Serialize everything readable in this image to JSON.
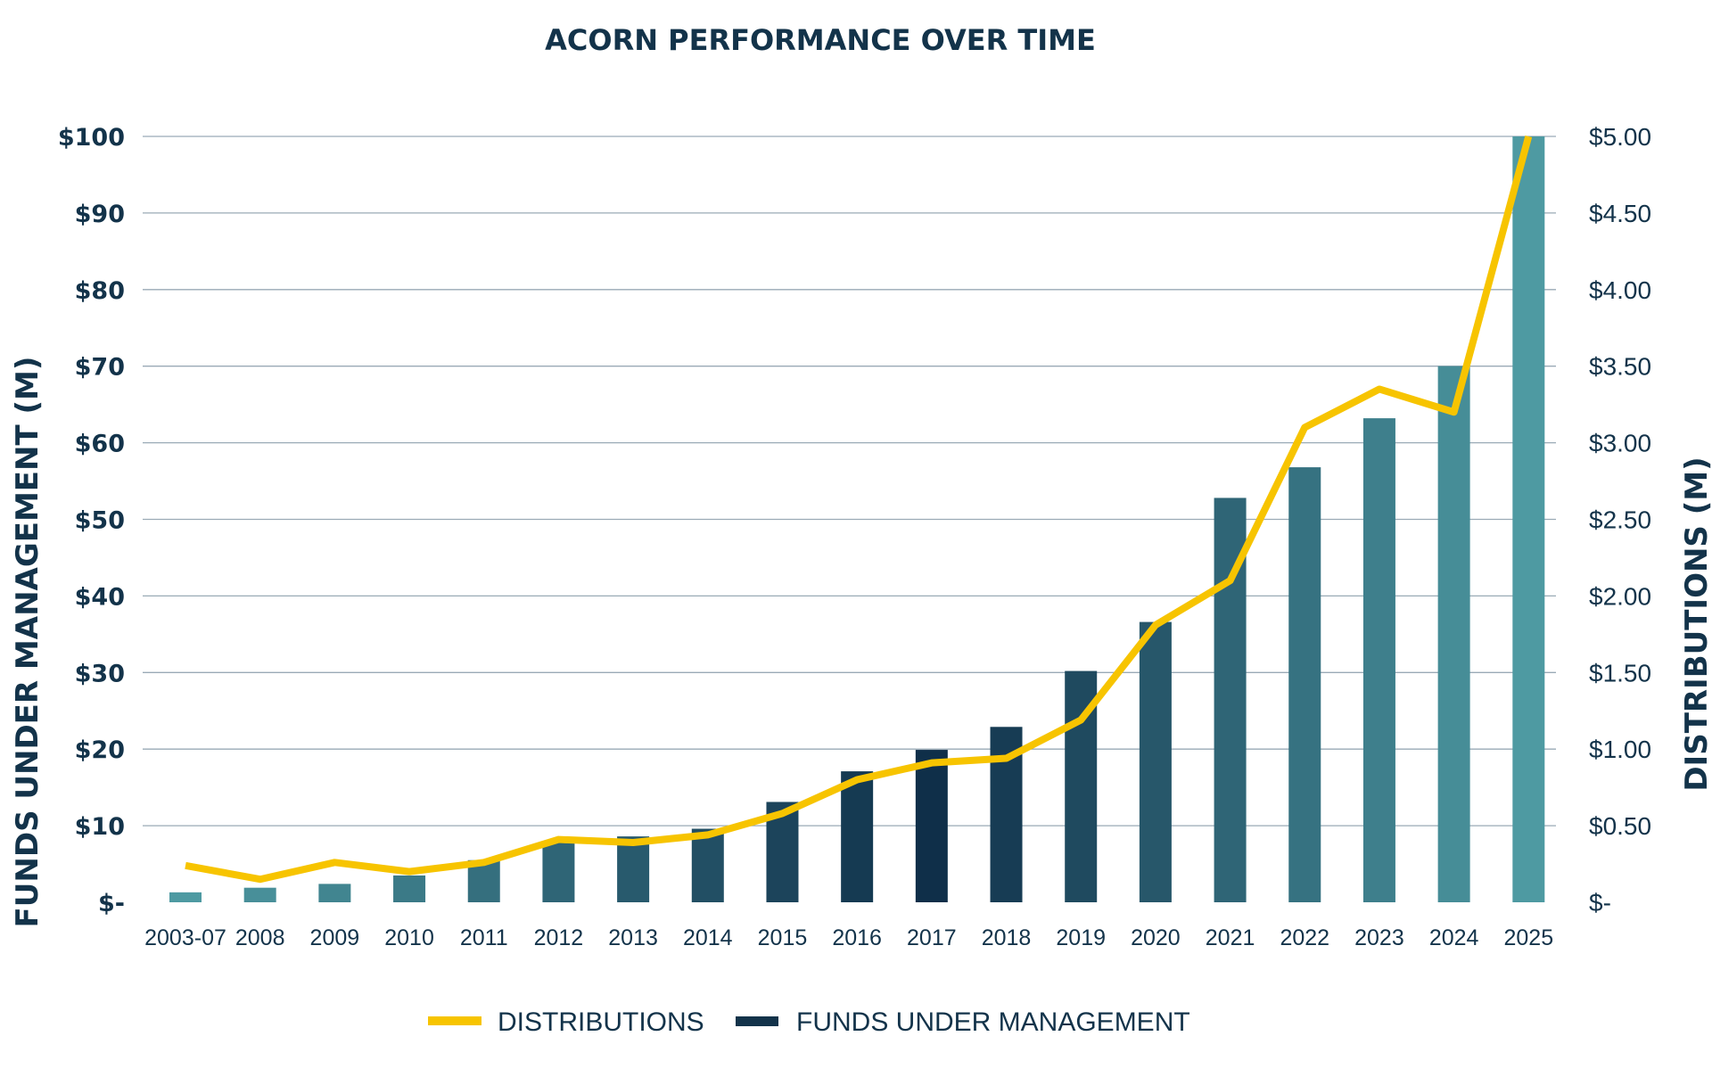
{
  "chart_data": {
    "type": "bar",
    "title": "ACORN PERFORMANCE OVER TIME",
    "categories": [
      "2003-07",
      "2008",
      "2009",
      "2010",
      "2011",
      "2012",
      "2013",
      "2014",
      "2015",
      "2016",
      "2017",
      "2018",
      "2019",
      "2020",
      "2021",
      "2022",
      "2023",
      "2024",
      "2025"
    ],
    "series": [
      {
        "name": "FUNDS UNDER MANAGEMENT",
        "axis": "left",
        "type": "bar",
        "values": [
          1.3,
          1.9,
          2.4,
          3.5,
          5.5,
          8.0,
          8.6,
          9.6,
          13.1,
          17.1,
          19.9,
          22.9,
          30.2,
          36.6,
          52.8,
          56.8,
          63.2,
          70.0,
          100.0
        ]
      },
      {
        "name": "DISTRIBUTIONS",
        "axis": "right",
        "type": "line",
        "color": "#f7c400",
        "values": [
          0.24,
          0.15,
          0.26,
          0.2,
          0.26,
          0.41,
          0.39,
          0.44,
          0.58,
          0.8,
          0.91,
          0.94,
          1.19,
          1.81,
          2.1,
          3.1,
          3.35,
          3.2,
          5.0
        ]
      }
    ],
    "y_left": {
      "label": "FUNDS UNDER MANAGEMENT (M)",
      "ylim": [
        0,
        100
      ],
      "ticks": [
        0,
        10,
        20,
        30,
        40,
        50,
        60,
        70,
        80,
        90,
        100
      ],
      "tick_labels": [
        "$-",
        "$10",
        "$20",
        "$30",
        "$40",
        "$50",
        "$60",
        "$70",
        "$80",
        "$90",
        "$100"
      ]
    },
    "y_right": {
      "label": "DISTRIBUTIONS (M)",
      "ylim": [
        0,
        5
      ],
      "ticks": [
        0,
        0.5,
        1,
        1.5,
        2,
        2.5,
        3,
        3.5,
        4,
        4.5,
        5
      ],
      "tick_labels": [
        "$-",
        "$0.50",
        "$1.00",
        "$1.50",
        "$2.00",
        "$2.50",
        "$3.00",
        "$3.50",
        "$4.00",
        "$4.50",
        "$5.00"
      ]
    },
    "grid": true,
    "legend": {
      "position": "bottom-center",
      "items": [
        "DISTRIBUTIONS",
        "FUNDS UNDER MANAGEMENT"
      ]
    },
    "bar_color_gradient": [
      "#4e9aa2",
      "#0f2f49",
      "#4e9aa2"
    ],
    "legend_bar_color": "#13334a"
  }
}
